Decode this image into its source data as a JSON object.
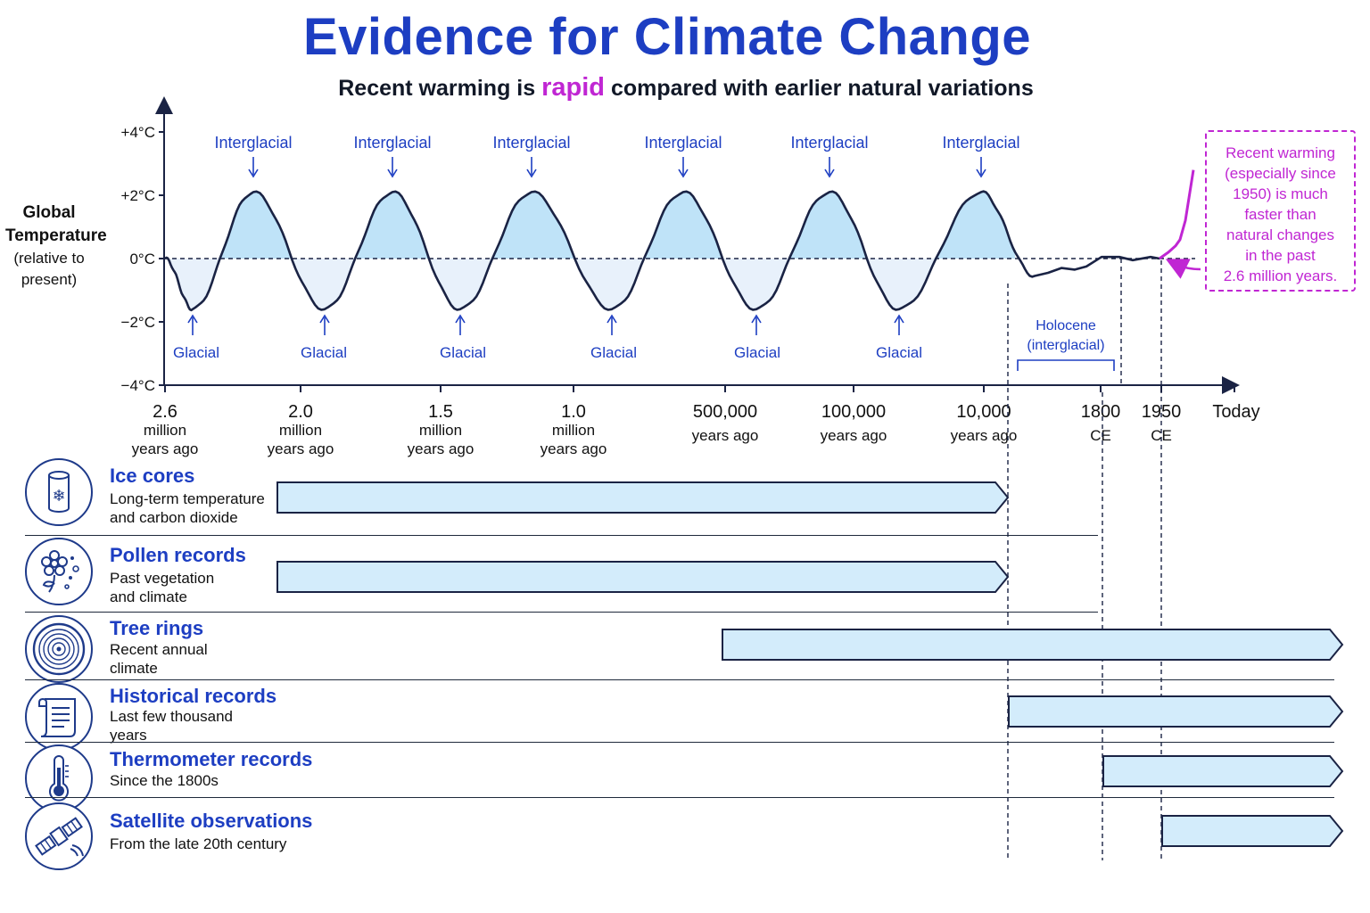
{
  "title": "Evidence for Climate Change",
  "subtitle": {
    "before": "Recent warming is ",
    "highlight": "rapid",
    "after": " compared with earlier natural variations"
  },
  "y_axis": {
    "label_line1": "Global",
    "label_line2": "Temperature",
    "label_line3": "(relative to",
    "label_line4": "present)"
  },
  "callout": {
    "lines": [
      "Recent warming",
      "(especially since",
      "1950) is much",
      "faster than",
      "natural changes",
      "in the past",
      "2.6 million years."
    ]
  },
  "holocene": {
    "line1": "Holocene",
    "line2": "(interglacial)"
  },
  "cycle_labels": {
    "peak": "Interglacial",
    "trough": "Glacial"
  },
  "proxies": [
    {
      "name": "Ice cores",
      "desc_lines": [
        "Long-term temperature",
        "and carbon dioxide"
      ],
      "icon": "ice-core-icon",
      "start": "2.0 million years ago",
      "end": "10,000 years ago"
    },
    {
      "name": "Pollen records",
      "desc_lines": [
        "Past vegetation",
        "and climate"
      ],
      "icon": "flower-pollen-icon",
      "start": "2.0 million years ago",
      "end": "10,000 years ago"
    },
    {
      "name": "Tree rings",
      "desc_lines": [
        "Recent annual",
        "climate"
      ],
      "icon": "tree-rings-icon",
      "start": "500,000 years ago",
      "end": "Today"
    },
    {
      "name": "Historical records",
      "desc_lines": [
        "Last few thousand",
        "years"
      ],
      "icon": "scroll-icon",
      "start": "10,000 years ago",
      "end": "Today"
    },
    {
      "name": "Thermometer records",
      "desc_lines": [
        "Since the 1800s"
      ],
      "icon": "thermometer-icon",
      "start": "1800 CE",
      "end": "Today"
    },
    {
      "name": "Satellite observations",
      "desc_lines": [
        "From the late 20th century"
      ],
      "icon": "satellite-icon",
      "start": "1950 CE",
      "end": "Today"
    }
  ],
  "colors": {
    "title": "#1d3ec2",
    "highlight": "#c026d3",
    "line": "#1a2344",
    "fill_warm": "#bfe3f8",
    "fill_cool": "#e8f1fb",
    "bar_fill": "#d3ecfb",
    "label_blue": "#1d3ec2"
  },
  "chart_data": {
    "type": "line",
    "title": "Evidence for Climate Change",
    "ylabel": "Global Temperature (relative to present)",
    "y_unit": "°C",
    "ylim": [
      -4,
      4
    ],
    "y_ticks": [
      {
        "value": 4,
        "label": "+4°C"
      },
      {
        "value": 2,
        "label": "+2°C"
      },
      {
        "value": 0,
        "label": "0°C"
      },
      {
        "value": -2,
        "label": "−2°C"
      },
      {
        "value": -4,
        "label": "−4°C"
      }
    ],
    "x_ticks": [
      {
        "label": [
          "2.6",
          "million",
          "years ago"
        ]
      },
      {
        "label": [
          "2.0",
          "million",
          "years ago"
        ]
      },
      {
        "label": [
          "1.5",
          "million",
          "years ago"
        ]
      },
      {
        "label": [
          "1.0",
          "million",
          "years ago"
        ]
      },
      {
        "label": [
          "500,000",
          "years ago"
        ]
      },
      {
        "label": [
          "100,000",
          "years ago"
        ]
      },
      {
        "label": [
          "10,000",
          "years ago"
        ]
      },
      {
        "label": [
          "1800",
          "CE"
        ]
      },
      {
        "label": [
          "1950",
          "CE"
        ]
      },
      {
        "label": [
          "Today"
        ]
      }
    ],
    "x_scale": "nonlinear (compressed toward present)",
    "glacial_cycles": {
      "peaks_interglacial_c": [
        2.1,
        2.1,
        2.1,
        2.1,
        2.1,
        2.1
      ],
      "troughs_glacial_c": [
        -1.6,
        -1.6,
        -1.6,
        -1.6,
        -1.6,
        -1.6
      ]
    },
    "holocene_c": {
      "range": [
        -0.6,
        0.1
      ]
    },
    "recent_warming_c": [
      0,
      0.2,
      0.4,
      0.6,
      1.2,
      2.8
    ],
    "annotations": [
      "Interglacial",
      "Glacial",
      "Holocene (interglacial)",
      "Recent warming (especially since 1950) is much faster than natural changes in the past 2.6 million years."
    ],
    "grid": false
  }
}
